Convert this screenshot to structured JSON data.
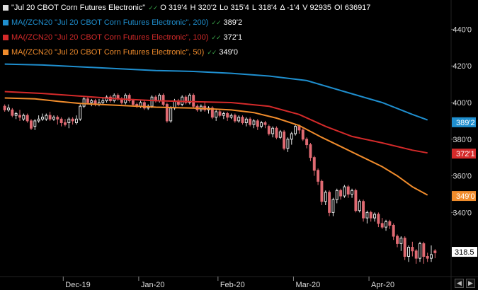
{
  "legend": {
    "main": {
      "label": "\"Jul 20 CBOT Corn Futures Electronic\"",
      "icons": "✓✓",
      "open": "O 319'4",
      "high": "H 320'2",
      "low": "Lo 315'4",
      "last": "L 318'4",
      "change": "Δ -1'4",
      "volume": "V 92935",
      "oi": "OI 636917",
      "color": "#ffffff"
    },
    "ma200": {
      "label": "MA(/ZCN20 \"Jul 20 CBOT Corn Futures Electronic\", 200)",
      "icons": "✓✓",
      "value": "389'2",
      "color": "#1f8fcf"
    },
    "ma100": {
      "label": "MA(/ZCN20 \"Jul 20 CBOT Corn Futures Electronic\", 100)",
      "icons": "✓✓",
      "value": "372'1",
      "color": "#d42a2a"
    },
    "ma50": {
      "label": "MA(/ZCN20 \"Jul 20 CBOT Corn Futures Electronic\", 50)",
      "icons": "✓✓",
      "value": "349'0",
      "color": "#f08c2c"
    }
  },
  "chart_data": {
    "type": "candlestick",
    "y_axis": {
      "ticks": [
        {
          "value": 440,
          "label": "440'0"
        },
        {
          "value": 420,
          "label": "420'0"
        },
        {
          "value": 400,
          "label": "400'0"
        },
        {
          "value": 380,
          "label": "380'0"
        },
        {
          "value": 360,
          "label": "360'0"
        },
        {
          "value": 340,
          "label": "340'0"
        }
      ],
      "ylim": [
        305,
        455
      ]
    },
    "x_axis": {
      "ticks": [
        "Dec-19",
        "Jan-20",
        "Feb-20",
        "Mar-20",
        "Apr-20"
      ],
      "tick_index": [
        16,
        36,
        57,
        77,
        97
      ]
    },
    "series": [
      {
        "name": "MA(/ZCN20 \"Jul 20 CBOT Corn Futures Electronic\", 200)",
        "color": "#1f8fcf",
        "line_width": 2,
        "points": [
          [
            0,
            421.0
          ],
          [
            10,
            420.5
          ],
          [
            20,
            419.5
          ],
          [
            30,
            418.5
          ],
          [
            40,
            417.5
          ],
          [
            50,
            417.0
          ],
          [
            60,
            416.0
          ],
          [
            70,
            414.5
          ],
          [
            80,
            412.0
          ],
          [
            90,
            406.0
          ],
          [
            100,
            400.0
          ],
          [
            108,
            393.5
          ],
          [
            112,
            390.5
          ]
        ]
      },
      {
        "name": "MA(/ZCN20 \"Jul 20 CBOT Corn Futures Electronic\", 100)",
        "color": "#d42a2a",
        "line_width": 2,
        "points": [
          [
            0,
            406.0
          ],
          [
            10,
            405.0
          ],
          [
            20,
            403.5
          ],
          [
            30,
            402.0
          ],
          [
            40,
            401.0
          ],
          [
            50,
            400.5
          ],
          [
            60,
            400.0
          ],
          [
            70,
            398.0
          ],
          [
            78,
            393.5
          ],
          [
            85,
            387.0
          ],
          [
            92,
            381.5
          ],
          [
            100,
            378.0
          ],
          [
            108,
            374.0
          ],
          [
            112,
            372.5
          ]
        ]
      },
      {
        "name": "MA(/ZCN20 \"Jul 20 CBOT Corn Futures Electronic\", 50)",
        "color": "#f08c2c",
        "line_width": 2,
        "points": [
          [
            0,
            402.5
          ],
          [
            8,
            402.0
          ],
          [
            15,
            400.5
          ],
          [
            20,
            399.5
          ],
          [
            25,
            399.0
          ],
          [
            30,
            398.5
          ],
          [
            40,
            397.5
          ],
          [
            50,
            397.0
          ],
          [
            60,
            396.0
          ],
          [
            66,
            394.5
          ],
          [
            72,
            391.5
          ],
          [
            78,
            387.5
          ],
          [
            84,
            381.0
          ],
          [
            90,
            375.0
          ],
          [
            95,
            370.0
          ],
          [
            100,
            365.0
          ],
          [
            104,
            360.0
          ],
          [
            108,
            354.0
          ],
          [
            112,
            349.5
          ]
        ]
      }
    ],
    "candles": [
      [
        398,
        396,
        399,
        395
      ],
      [
        396,
        397,
        399,
        395
      ],
      [
        396,
        393,
        397,
        392
      ],
      [
        393,
        394,
        395,
        391
      ],
      [
        393,
        392,
        396,
        390
      ],
      [
        391,
        393,
        394,
        390
      ],
      [
        393,
        390,
        394,
        389
      ],
      [
        390,
        386,
        391,
        385
      ],
      [
        387,
        390,
        391,
        385
      ],
      [
        390,
        391,
        393,
        389
      ],
      [
        391,
        392,
        394,
        390
      ],
      [
        391,
        393,
        394,
        390
      ],
      [
        393,
        391,
        395,
        390
      ],
      [
        391,
        392,
        393,
        390
      ],
      [
        392,
        391,
        393,
        388
      ],
      [
        391,
        389,
        392,
        387
      ],
      [
        389,
        388,
        391,
        387
      ],
      [
        389,
        391,
        392,
        386
      ],
      [
        391,
        390,
        392,
        388
      ],
      [
        389,
        391,
        393,
        388
      ],
      [
        391,
        398,
        399,
        390
      ],
      [
        398,
        402,
        403,
        397
      ],
      [
        402,
        400,
        403,
        399
      ],
      [
        400,
        401,
        402,
        398
      ],
      [
        401,
        399,
        402,
        398
      ],
      [
        399,
        400,
        402,
        398
      ],
      [
        400,
        401,
        403,
        399
      ],
      [
        401,
        403,
        404,
        400
      ],
      [
        403,
        401,
        404,
        400
      ],
      [
        401,
        404,
        405,
        400
      ],
      [
        404,
        402,
        405,
        401
      ],
      [
        402,
        400,
        403,
        399
      ],
      [
        400,
        404,
        405,
        399
      ],
      [
        404,
        401,
        405,
        400
      ],
      [
        401,
        399,
        402,
        398
      ],
      [
        399,
        398,
        400,
        397
      ],
      [
        398,
        400,
        401,
        397
      ],
      [
        400,
        397,
        401,
        396
      ],
      [
        397,
        398,
        399,
        396
      ],
      [
        398,
        403,
        404,
        397
      ],
      [
        403,
        401,
        404,
        400
      ],
      [
        401,
        404,
        405,
        400
      ],
      [
        404,
        399,
        405,
        398
      ],
      [
        399,
        390,
        400,
        389
      ],
      [
        390,
        397,
        398,
        389
      ],
      [
        397,
        401,
        402,
        396
      ],
      [
        401,
        399,
        402,
        398
      ],
      [
        399,
        403,
        404,
        398
      ],
      [
        403,
        400,
        404,
        399
      ],
      [
        400,
        404,
        405,
        399
      ],
      [
        404,
        398,
        405,
        397
      ],
      [
        398,
        396,
        399,
        395
      ],
      [
        396,
        398,
        399,
        395
      ],
      [
        398,
        396,
        400,
        395
      ],
      [
        396,
        397,
        398,
        394
      ],
      [
        397,
        392,
        398,
        391
      ],
      [
        392,
        395,
        396,
        390
      ],
      [
        395,
        393,
        396,
        392
      ],
      [
        393,
        394,
        395,
        391
      ],
      [
        394,
        392,
        395,
        390
      ],
      [
        392,
        393,
        394,
        391
      ],
      [
        393,
        390,
        394,
        389
      ],
      [
        390,
        392,
        393,
        389
      ],
      [
        392,
        389,
        393,
        388
      ],
      [
        389,
        391,
        392,
        387
      ],
      [
        391,
        388,
        392,
        387
      ],
      [
        388,
        390,
        391,
        386
      ],
      [
        390,
        387,
        391,
        385
      ],
      [
        387,
        389,
        390,
        386
      ],
      [
        389,
        388,
        390,
        386
      ],
      [
        387,
        383,
        388,
        382
      ],
      [
        383,
        386,
        387,
        381
      ],
      [
        386,
        381,
        387,
        380
      ],
      [
        381,
        384,
        385,
        380
      ],
      [
        384,
        375,
        385,
        374
      ],
      [
        375,
        380,
        381,
        373
      ],
      [
        380,
        383,
        384,
        377
      ],
      [
        383,
        387,
        388,
        382
      ],
      [
        387,
        385,
        388,
        383
      ],
      [
        385,
        380,
        386,
        379
      ],
      [
        380,
        377,
        381,
        375
      ],
      [
        377,
        370,
        378,
        368
      ],
      [
        370,
        363,
        371,
        360
      ],
      [
        363,
        357,
        364,
        355
      ],
      [
        357,
        346,
        358,
        344
      ],
      [
        346,
        351,
        352,
        344
      ],
      [
        351,
        340,
        352,
        338
      ],
      [
        340,
        347,
        348,
        338
      ],
      [
        347,
        352,
        353,
        345
      ],
      [
        352,
        349,
        353,
        347
      ],
      [
        349,
        354,
        355,
        348
      ],
      [
        354,
        350,
        355,
        348
      ],
      [
        350,
        352,
        353,
        348
      ],
      [
        352,
        341,
        353,
        340
      ],
      [
        341,
        346,
        347,
        340
      ],
      [
        346,
        337,
        347,
        335
      ],
      [
        337,
        340,
        341,
        334
      ],
      [
        340,
        337,
        341,
        335
      ],
      [
        337,
        339,
        340,
        335
      ],
      [
        339,
        334,
        340,
        332
      ],
      [
        334,
        332,
        337,
        331
      ],
      [
        332,
        335,
        336,
        330
      ],
      [
        335,
        333,
        336,
        331
      ],
      [
        333,
        327,
        334,
        325
      ],
      [
        327,
        323,
        328,
        321
      ],
      [
        323,
        326,
        327,
        319
      ],
      [
        326,
        316,
        327,
        314
      ],
      [
        316,
        321,
        322,
        313
      ],
      [
        321,
        319,
        324,
        316
      ],
      [
        319,
        315,
        320,
        312
      ],
      [
        315,
        323,
        324,
        313
      ],
      [
        323,
        316,
        324,
        312
      ],
      [
        316,
        315,
        318,
        313
      ],
      [
        315,
        317,
        322,
        313
      ],
      [
        319,
        318,
        320,
        315
      ]
    ],
    "up_color": "#e8e8e8",
    "down_color": "#e06a72",
    "last_price": {
      "label": "318.5",
      "value": 318.5
    },
    "ma_tags": [
      {
        "label": "389'2",
        "value": 389.25,
        "color": "#1f8fcf"
      },
      {
        "label": "372'1",
        "value": 372.125,
        "color": "#d42a2a"
      },
      {
        "label": "349'0",
        "value": 349.0,
        "color": "#f08c2c"
      }
    ],
    "grid": false
  },
  "nav": {
    "left_icon": "◀",
    "right_icon": "▶"
  }
}
